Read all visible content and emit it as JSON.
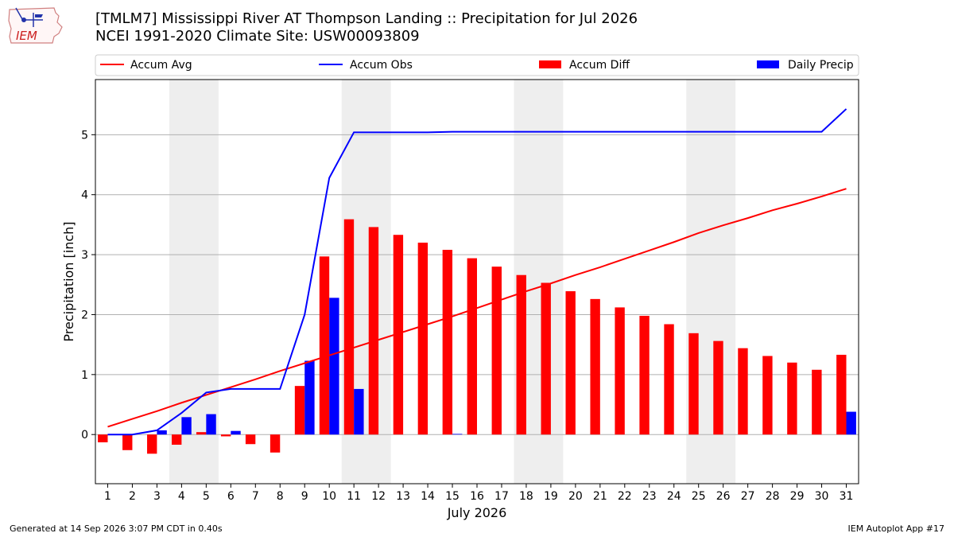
{
  "header": {
    "title_line1": "[TMLM7] Mississippi River  AT Thompson Landing :: Precipitation for Jul 2026",
    "title_line2": "NCEI 1991-2020 Climate Site: USW00093809",
    "logo_text": "IEM"
  },
  "footer": {
    "generated": "Generated at 14 Sep 2026 3:07 PM CDT in 0.40s",
    "app": "IEM Autoplot App #17"
  },
  "colors": {
    "accum_avg": "#ff0000",
    "accum_obs": "#0000ff",
    "accum_diff": "#ff0000",
    "daily_precip": "#0000ff",
    "weekend_shade": "#eeeeee",
    "grid": "#b0b0b0"
  },
  "chart_data": {
    "type": "bar",
    "xlabel": "July 2026",
    "ylabel": "Precipitation [inch]",
    "ylim": [
      -0.82,
      5.92
    ],
    "xlim": [
      0.5,
      31.5
    ],
    "yticks": [
      0,
      1,
      2,
      3,
      4,
      5
    ],
    "grid": "horizontal",
    "legend_position": "top",
    "legend": [
      "Accum Avg",
      "Accum Obs",
      "Accum Diff",
      "Daily Precip"
    ],
    "weekend_shades": [
      [
        3.5,
        5.5
      ],
      [
        10.5,
        12.5
      ],
      [
        17.5,
        19.5
      ],
      [
        24.5,
        26.5
      ]
    ],
    "days": [
      1,
      2,
      3,
      4,
      5,
      6,
      7,
      8,
      9,
      10,
      11,
      12,
      13,
      14,
      15,
      16,
      17,
      18,
      19,
      20,
      21,
      22,
      23,
      24,
      25,
      26,
      27,
      28,
      29,
      30,
      31
    ],
    "series": [
      {
        "name": "Accum Avg",
        "kind": "line",
        "values": [
          0.13,
          0.26,
          0.39,
          0.53,
          0.66,
          0.79,
          0.92,
          1.06,
          1.19,
          1.32,
          1.45,
          1.58,
          1.71,
          1.84,
          1.97,
          2.11,
          2.25,
          2.39,
          2.52,
          2.66,
          2.79,
          2.93,
          3.07,
          3.21,
          3.36,
          3.49,
          3.61,
          3.74,
          3.85,
          3.97,
          4.1
        ]
      },
      {
        "name": "Accum Obs",
        "kind": "line",
        "values": [
          0.0,
          0.0,
          0.07,
          0.36,
          0.7,
          0.76,
          0.76,
          0.76,
          2.0,
          4.28,
          5.04,
          5.04,
          5.04,
          5.04,
          5.05,
          5.05,
          5.05,
          5.05,
          5.05,
          5.05,
          5.05,
          5.05,
          5.05,
          5.05,
          5.05,
          5.05,
          5.05,
          5.05,
          5.05,
          5.05,
          5.43
        ]
      },
      {
        "name": "Accum Diff",
        "kind": "bar",
        "values": [
          -0.13,
          -0.26,
          -0.32,
          -0.17,
          0.04,
          -0.03,
          -0.16,
          -0.3,
          0.81,
          2.97,
          3.59,
          3.46,
          3.33,
          3.2,
          3.08,
          2.94,
          2.8,
          2.66,
          2.53,
          2.39,
          2.26,
          2.12,
          1.98,
          1.84,
          1.69,
          1.56,
          1.44,
          1.31,
          1.2,
          1.08,
          1.33
        ]
      },
      {
        "name": "Daily Precip",
        "kind": "bar",
        "values": [
          0.0,
          0.0,
          0.07,
          0.29,
          0.34,
          0.06,
          0.0,
          0.0,
          1.23,
          2.28,
          0.76,
          0.0,
          0.0,
          0.0,
          0.01,
          0.0,
          0.0,
          0.0,
          0.0,
          0.0,
          0.0,
          0.0,
          0.0,
          0.0,
          0.0,
          0.0,
          0.0,
          0.0,
          0.0,
          0.0,
          0.38
        ]
      }
    ]
  }
}
